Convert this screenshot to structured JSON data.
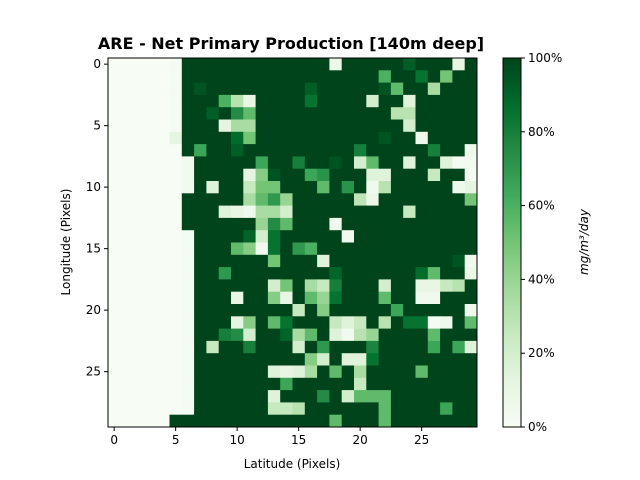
{
  "chart_data": {
    "type": "heatmap",
    "title": "ARE - Net Primary Production [140m deep]",
    "xlabel": "Latitude (Pixels)",
    "ylabel": "Longitude (Pixels)",
    "colorbar_label": "mg/m³/day",
    "colormap": "Greens",
    "colorbar_ticks": [
      "0%",
      "20%",
      "40%",
      "60%",
      "80%",
      "100%"
    ],
    "x_ticks": [
      "0",
      "5",
      "10",
      "15",
      "20",
      "25"
    ],
    "y_ticks": [
      "0",
      "5",
      "10",
      "15",
      "20",
      "25"
    ],
    "rows": 30,
    "cols": 30,
    "grid": false,
    "values": [
      [
        0,
        0,
        0,
        0,
        0,
        0.02,
        1,
        1,
        1,
        1,
        1,
        1,
        1,
        1,
        1,
        1,
        1,
        1,
        0.08,
        1,
        1,
        1,
        1,
        1,
        0.92,
        1,
        1,
        1,
        0.1,
        1
      ],
      [
        0,
        0,
        0,
        0,
        0,
        0.02,
        1,
        1,
        1,
        1,
        1,
        1,
        1,
        1,
        1,
        1,
        1,
        1,
        1,
        1,
        1,
        1,
        0.6,
        1,
        1,
        0.85,
        1,
        0.5,
        1,
        1
      ],
      [
        0,
        0,
        0,
        0,
        0,
        0.02,
        1,
        0.95,
        1,
        1,
        1,
        1,
        1,
        1,
        1,
        1,
        0.92,
        1,
        1,
        1,
        1,
        1,
        0.95,
        0.55,
        1,
        1,
        0.35,
        1,
        1,
        1
      ],
      [
        0,
        0,
        0,
        0,
        0,
        0.02,
        1,
        1,
        1,
        0.6,
        0.3,
        0.1,
        1,
        1,
        1,
        1,
        0.85,
        1,
        1,
        1,
        1,
        0.2,
        1,
        1,
        0.15,
        1,
        1,
        1,
        1,
        1
      ],
      [
        0,
        0,
        0,
        0,
        0,
        0.02,
        1,
        1,
        0.92,
        1,
        0.75,
        0.55,
        1,
        1,
        1,
        1,
        1,
        1,
        1,
        1,
        1,
        1,
        1,
        0.3,
        0.3,
        1,
        1,
        1,
        1,
        1
      ],
      [
        0,
        0,
        0,
        0,
        0,
        0.02,
        1,
        1,
        1,
        0.12,
        0.35,
        0.35,
        1,
        1,
        1,
        1,
        1,
        1,
        1,
        1,
        1,
        1,
        1,
        1,
        0.2,
        1,
        1,
        1,
        1,
        1
      ],
      [
        0,
        0,
        0,
        0,
        0,
        0.12,
        1,
        1,
        1,
        1,
        0.88,
        0.5,
        1,
        1,
        1,
        1,
        1,
        1,
        1,
        1,
        1,
        1,
        0.95,
        1,
        1,
        0.06,
        1,
        1,
        1,
        1
      ],
      [
        0,
        0,
        0,
        0,
        0,
        0,
        1,
        0.65,
        1,
        1,
        0.92,
        1,
        1,
        1,
        1,
        1,
        1,
        1,
        1,
        1,
        0.8,
        1,
        1,
        1,
        1,
        1,
        0.8,
        1,
        1,
        0.06
      ],
      [
        0,
        0,
        0,
        0,
        0,
        0,
        0.04,
        1,
        1,
        1,
        1,
        1,
        0.65,
        1,
        1,
        0.8,
        1,
        1,
        0.95,
        1,
        0.2,
        0.55,
        1,
        1,
        0.15,
        1,
        1,
        0.15,
        0.02,
        0.03
      ],
      [
        0,
        0,
        0,
        0,
        0,
        0,
        0.04,
        1,
        1,
        1,
        1,
        0.12,
        0.45,
        0.95,
        1,
        1,
        0.65,
        0.72,
        1,
        1,
        1,
        0.15,
        0.15,
        1,
        1,
        1,
        0.25,
        1,
        1,
        0.02
      ],
      [
        0,
        0,
        0,
        0,
        0,
        0,
        0.04,
        1,
        0.15,
        1,
        1,
        0.25,
        0.5,
        0.5,
        1,
        1,
        1,
        0.55,
        1,
        0.72,
        1,
        0.05,
        0.3,
        1,
        1,
        1,
        1,
        1,
        0.06,
        0.12
      ],
      [
        0,
        0,
        0,
        0,
        0,
        0,
        1,
        1,
        1,
        1,
        1,
        0.35,
        0.55,
        0.7,
        0.4,
        1,
        1,
        1,
        1,
        1,
        0.28,
        0.08,
        1,
        1,
        1,
        1,
        1,
        1,
        1,
        0.5
      ],
      [
        0,
        0,
        0,
        0,
        0,
        0,
        1,
        1,
        1,
        0.15,
        0.1,
        0.05,
        0.35,
        0.35,
        0.2,
        1,
        1,
        1,
        1,
        1,
        1,
        1,
        1,
        1,
        0.25,
        1,
        1,
        1,
        1,
        1
      ],
      [
        0,
        0,
        0,
        0,
        0,
        0,
        1,
        1,
        1,
        1,
        1,
        1,
        0.4,
        0.75,
        0.55,
        1,
        1,
        1,
        0.05,
        1,
        1,
        1,
        1,
        1,
        1,
        1,
        1,
        1,
        1,
        1
      ],
      [
        0,
        0,
        0,
        0,
        0,
        0,
        0.02,
        1,
        1,
        1,
        1,
        0.9,
        0.2,
        0.85,
        1,
        1,
        1,
        1,
        1,
        0.05,
        1,
        1,
        1,
        1,
        1,
        1,
        1,
        1,
        1,
        1
      ],
      [
        0,
        0,
        0,
        0,
        0,
        0,
        0.02,
        1,
        1,
        1,
        0.55,
        0.45,
        0.05,
        0.85,
        1,
        0.7,
        0.6,
        1,
        1,
        1,
        1,
        1,
        1,
        1,
        1,
        1,
        1,
        1,
        1,
        1
      ],
      [
        0,
        0,
        0,
        0,
        0,
        0,
        0.02,
        1,
        1,
        1,
        1,
        1,
        1,
        0.5,
        1,
        1,
        1,
        0.15,
        1,
        1,
        1,
        1,
        1,
        1,
        1,
        1,
        1,
        1,
        0.95,
        0.05
      ],
      [
        0,
        0,
        0,
        0,
        0,
        0,
        0.02,
        1,
        1,
        0.7,
        1,
        1,
        1,
        1,
        1,
        1,
        1,
        1,
        0.9,
        1,
        1,
        1,
        1,
        1,
        1,
        0.88,
        0.55,
        1,
        1,
        0.08
      ],
      [
        0,
        0,
        0,
        0,
        0,
        0,
        0.02,
        1,
        1,
        1,
        1,
        1,
        1,
        0.2,
        0.5,
        1,
        0.35,
        0.25,
        0.8,
        1,
        1,
        1,
        0.2,
        1,
        1,
        0.1,
        0.1,
        0.25,
        0.3,
        1
      ],
      [
        0,
        0,
        0,
        0,
        0,
        0,
        0.02,
        1,
        1,
        1,
        0.1,
        1,
        1,
        0.45,
        0.1,
        1,
        0.55,
        0.4,
        0.85,
        1,
        1,
        1,
        0.55,
        1,
        1,
        0.05,
        0.05,
        1,
        1,
        1
      ],
      [
        0,
        0,
        0,
        0,
        0,
        0,
        0.02,
        1,
        1,
        1,
        1,
        1,
        1,
        1,
        1,
        0.25,
        1,
        0.45,
        1,
        1,
        1,
        1,
        1,
        0.65,
        1,
        1,
        1,
        1,
        1,
        0.06
      ],
      [
        0,
        0,
        0,
        0,
        0,
        0,
        0.02,
        1,
        1,
        1,
        0.12,
        0.45,
        1,
        0.55,
        0.85,
        1,
        1,
        1,
        0.25,
        0.15,
        0.25,
        1,
        0.3,
        1,
        0.85,
        0.85,
        0.02,
        0.06,
        1,
        0.55
      ],
      [
        0,
        0,
        0,
        0,
        0,
        0,
        0.02,
        1,
        1,
        0.8,
        0.75,
        0.2,
        1,
        1,
        0.9,
        0.35,
        0.55,
        1,
        0.15,
        0.04,
        0.3,
        0.4,
        1,
        1,
        1,
        1,
        0.55,
        1,
        1,
        1
      ],
      [
        0,
        0,
        0,
        0,
        0,
        0,
        0.02,
        1,
        0.25,
        1,
        1,
        0.8,
        1,
        1,
        1,
        0.2,
        1,
        0.7,
        1,
        1,
        1,
        0.78,
        1,
        1,
        1,
        1,
        0.65,
        1,
        0.65,
        0.15
      ],
      [
        0,
        0,
        0,
        0,
        0,
        0,
        0.02,
        1,
        1,
        1,
        1,
        1,
        1,
        1,
        1,
        1,
        0.45,
        0.2,
        1,
        0.15,
        0.15,
        0.85,
        1,
        1,
        1,
        1,
        1,
        1,
        1,
        1
      ],
      [
        0,
        0,
        0,
        0,
        0,
        0,
        0.02,
        1,
        1,
        1,
        1,
        1,
        1,
        0.15,
        0.1,
        0.15,
        0.35,
        1,
        0.55,
        1,
        0.35,
        1,
        1,
        1,
        1,
        0.55,
        1,
        1,
        1,
        1
      ],
      [
        0,
        0,
        0,
        0,
        0,
        0,
        0.02,
        1,
        1,
        1,
        1,
        1,
        1,
        1,
        0.65,
        1,
        1,
        1,
        1,
        1,
        0.25,
        1,
        1,
        1,
        1,
        1,
        1,
        1,
        1,
        1
      ],
      [
        0,
        0,
        0,
        0,
        0,
        0,
        0.02,
        1,
        1,
        1,
        1,
        1,
        1,
        0.15,
        1,
        1,
        1,
        0.75,
        1,
        0.2,
        0.55,
        0.55,
        0.55,
        1,
        1,
        1,
        1,
        1,
        1,
        1
      ],
      [
        0,
        0,
        0,
        0,
        0,
        0,
        0.02,
        1,
        1,
        1,
        1,
        1,
        1,
        0.25,
        0.25,
        0.3,
        1,
        1,
        1,
        1,
        1,
        1,
        0.55,
        1,
        1,
        1,
        1,
        0.65,
        1,
        1
      ],
      [
        0,
        0,
        0,
        0,
        0,
        1,
        1,
        1,
        1,
        1,
        1,
        1,
        1,
        1,
        1,
        1,
        1,
        1,
        0.55,
        1,
        1,
        1,
        0.55,
        1,
        1,
        1,
        1,
        1,
        1,
        1
      ]
    ]
  }
}
